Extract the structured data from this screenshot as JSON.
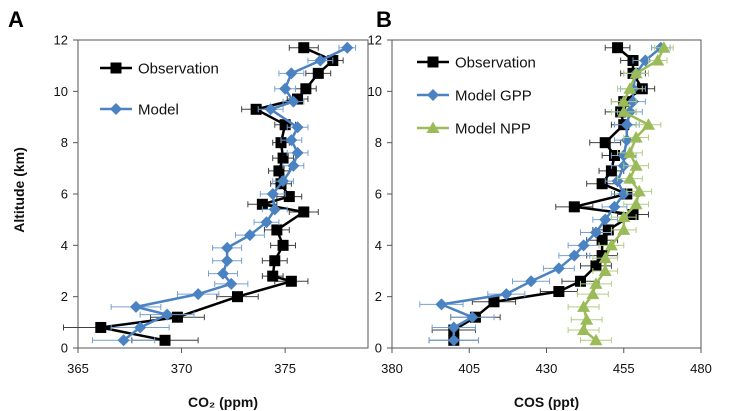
{
  "y_axis_title": "Altitude (km)",
  "chart_data": [
    {
      "type": "line",
      "panel_label": "A",
      "xlabel": "CO₂ (ppm)",
      "ylabel": "Altitude (km)",
      "xlim": [
        365,
        379
      ],
      "ylim": [
        0,
        12
      ],
      "xticks": [
        365,
        370,
        375
      ],
      "yticks": [
        0,
        2,
        4,
        6,
        8,
        10,
        12
      ],
      "legend_position": "top-left",
      "series": [
        {
          "name": "Observation",
          "color": "#000000",
          "marker": "square",
          "points": [
            {
              "y": 11.7,
              "x": 375.9,
              "xerr": 0.7
            },
            {
              "y": 11.2,
              "x": 377.3,
              "xerr": 0.5
            },
            {
              "y": 10.7,
              "x": 376.6,
              "xerr": 0.6
            },
            {
              "y": 10.1,
              "x": 376.0,
              "xerr": 0.5
            },
            {
              "y": 9.7,
              "x": 375.6,
              "xerr": 0.5
            },
            {
              "y": 9.3,
              "x": 373.6,
              "xerr": 0.7
            },
            {
              "y": 8.7,
              "x": 375.0,
              "xerr": 0.5
            },
            {
              "y": 8.0,
              "x": 374.8,
              "xerr": 0.4
            },
            {
              "y": 7.4,
              "x": 374.9,
              "xerr": 0.5
            },
            {
              "y": 6.9,
              "x": 374.7,
              "xerr": 0.5
            },
            {
              "y": 6.4,
              "x": 374.8,
              "xerr": 0.5
            },
            {
              "y": 5.9,
              "x": 375.2,
              "xerr": 0.6
            },
            {
              "y": 5.6,
              "x": 373.9,
              "xerr": 0.7
            },
            {
              "y": 5.3,
              "x": 375.9,
              "xerr": 0.7
            },
            {
              "y": 4.6,
              "x": 374.6,
              "xerr": 0.6
            },
            {
              "y": 4.0,
              "x": 374.9,
              "xerr": 0.6
            },
            {
              "y": 3.4,
              "x": 374.5,
              "xerr": 0.6
            },
            {
              "y": 2.8,
              "x": 374.4,
              "xerr": 0.5
            },
            {
              "y": 2.6,
              "x": 375.3,
              "xerr": 0.8
            },
            {
              "y": 2.0,
              "x": 372.7,
              "xerr": 1.0
            },
            {
              "y": 1.2,
              "x": 369.8,
              "xerr": 1.3
            },
            {
              "y": 0.8,
              "x": 366.1,
              "xerr": 1.8
            },
            {
              "y": 0.3,
              "x": 369.2,
              "xerr": 1.6
            }
          ]
        },
        {
          "name": "Model",
          "color": "#4a82c2",
          "marker": "diamond",
          "points": [
            {
              "y": 11.7,
              "x": 378.0,
              "xerr": 0.4
            },
            {
              "y": 11.2,
              "x": 376.7,
              "xerr": 0.6
            },
            {
              "y": 10.7,
              "x": 375.3,
              "xerr": 0.6
            },
            {
              "y": 10.1,
              "x": 375.0,
              "xerr": 0.5
            },
            {
              "y": 9.6,
              "x": 375.4,
              "xerr": 0.5
            },
            {
              "y": 9.3,
              "x": 374.3,
              "xerr": 0.6
            },
            {
              "y": 8.6,
              "x": 375.6,
              "xerr": 0.5
            },
            {
              "y": 8.1,
              "x": 375.3,
              "xerr": 0.5
            },
            {
              "y": 7.6,
              "x": 375.6,
              "xerr": 0.5
            },
            {
              "y": 7.1,
              "x": 375.4,
              "xerr": 0.5
            },
            {
              "y": 6.5,
              "x": 374.9,
              "xerr": 0.5
            },
            {
              "y": 6.0,
              "x": 374.4,
              "xerr": 0.6
            },
            {
              "y": 5.4,
              "x": 374.5,
              "xerr": 0.6
            },
            {
              "y": 4.9,
              "x": 374.1,
              "xerr": 0.6
            },
            {
              "y": 4.4,
              "x": 373.3,
              "xerr": 0.7
            },
            {
              "y": 3.9,
              "x": 372.2,
              "xerr": 0.7
            },
            {
              "y": 3.4,
              "x": 372.2,
              "xerr": 0.7
            },
            {
              "y": 2.9,
              "x": 372.0,
              "xerr": 0.7
            },
            {
              "y": 2.5,
              "x": 372.4,
              "xerr": 0.8
            },
            {
              "y": 2.1,
              "x": 370.8,
              "xerr": 1.0
            },
            {
              "y": 1.6,
              "x": 367.8,
              "xerr": 1.2
            },
            {
              "y": 1.3,
              "x": 369.3,
              "xerr": 1.3
            },
            {
              "y": 0.8,
              "x": 368.0,
              "xerr": 1.4
            },
            {
              "y": 0.3,
              "x": 367.2,
              "xerr": 1.5
            }
          ]
        }
      ]
    },
    {
      "type": "line",
      "panel_label": "B",
      "xlabel": "COS (ppt)",
      "ylabel": "Altitude (km)",
      "xlim": [
        380,
        480
      ],
      "ylim": [
        0,
        12
      ],
      "xticks": [
        380,
        405,
        430,
        455,
        480
      ],
      "yticks": [
        0,
        2,
        4,
        6,
        8,
        10,
        12
      ],
      "legend_position": "top-left",
      "series": [
        {
          "name": "Observation",
          "color": "#000000",
          "marker": "square",
          "points": [
            {
              "y": 11.7,
              "x": 453,
              "xerr": 4
            },
            {
              "y": 11.2,
              "x": 458,
              "xerr": 4
            },
            {
              "y": 10.7,
              "x": 458,
              "xerr": 4
            },
            {
              "y": 10.1,
              "x": 461,
              "xerr": 4
            },
            {
              "y": 9.6,
              "x": 455,
              "xerr": 4
            },
            {
              "y": 9.2,
              "x": 454,
              "xerr": 5
            },
            {
              "y": 8.7,
              "x": 455,
              "xerr": 4
            },
            {
              "y": 8.0,
              "x": 449,
              "xerr": 5
            },
            {
              "y": 7.5,
              "x": 452,
              "xerr": 4
            },
            {
              "y": 6.9,
              "x": 451,
              "xerr": 4
            },
            {
              "y": 6.4,
              "x": 448,
              "xerr": 5
            },
            {
              "y": 6.0,
              "x": 456,
              "xerr": 4
            },
            {
              "y": 5.5,
              "x": 439,
              "xerr": 6
            },
            {
              "y": 5.2,
              "x": 458,
              "xerr": 5
            },
            {
              "y": 4.6,
              "x": 450,
              "xerr": 5
            },
            {
              "y": 4.2,
              "x": 448,
              "xerr": 5
            },
            {
              "y": 3.6,
              "x": 448,
              "xerr": 5
            },
            {
              "y": 3.2,
              "x": 446,
              "xerr": 5
            },
            {
              "y": 2.6,
              "x": 441,
              "xerr": 6
            },
            {
              "y": 2.2,
              "x": 434,
              "xerr": 6
            },
            {
              "y": 1.8,
              "x": 413,
              "xerr": 7
            },
            {
              "y": 1.2,
              "x": 407,
              "xerr": 8
            },
            {
              "y": 0.7,
              "x": 400,
              "xerr": 7
            },
            {
              "y": 0.3,
              "x": 400,
              "xerr": 8
            }
          ]
        },
        {
          "name": "Model GPP",
          "color": "#4a82c2",
          "marker": "diamond",
          "points": [
            {
              "y": 11.7,
              "x": 467,
              "xerr": 3
            },
            {
              "y": 11.2,
              "x": 462,
              "xerr": 4
            },
            {
              "y": 10.7,
              "x": 459,
              "xerr": 4
            },
            {
              "y": 10.1,
              "x": 458,
              "xerr": 4
            },
            {
              "y": 9.6,
              "x": 458,
              "xerr": 4
            },
            {
              "y": 9.2,
              "x": 457,
              "xerr": 4
            },
            {
              "y": 8.7,
              "x": 456,
              "xerr": 4
            },
            {
              "y": 8.1,
              "x": 456,
              "xerr": 4
            },
            {
              "y": 7.5,
              "x": 455,
              "xerr": 4
            },
            {
              "y": 7.1,
              "x": 455,
              "xerr": 4
            },
            {
              "y": 6.5,
              "x": 453,
              "xerr": 4
            },
            {
              "y": 6.0,
              "x": 455,
              "xerr": 4
            },
            {
              "y": 5.5,
              "x": 452,
              "xerr": 4
            },
            {
              "y": 5.0,
              "x": 449,
              "xerr": 4
            },
            {
              "y": 4.5,
              "x": 446,
              "xerr": 5
            },
            {
              "y": 4.0,
              "x": 442,
              "xerr": 5
            },
            {
              "y": 3.6,
              "x": 439,
              "xerr": 5
            },
            {
              "y": 3.1,
              "x": 434,
              "xerr": 5
            },
            {
              "y": 2.6,
              "x": 425,
              "xerr": 6
            },
            {
              "y": 2.1,
              "x": 417,
              "xerr": 6
            },
            {
              "y": 1.7,
              "x": 396,
              "xerr": 7
            },
            {
              "y": 1.2,
              "x": 406,
              "xerr": 7
            },
            {
              "y": 0.8,
              "x": 400,
              "xerr": 7
            },
            {
              "y": 0.3,
              "x": 400,
              "xerr": 8
            }
          ]
        },
        {
          "name": "Model NPP",
          "color": "#9bbb59",
          "marker": "triangle",
          "points": [
            {
              "y": 11.7,
              "x": 468,
              "xerr": 3
            },
            {
              "y": 11.2,
              "x": 466,
              "xerr": 3
            },
            {
              "y": 10.7,
              "x": 459,
              "xerr": 4
            },
            {
              "y": 10.1,
              "x": 457,
              "xerr": 4
            },
            {
              "y": 9.6,
              "x": 455,
              "xerr": 4
            },
            {
              "y": 9.2,
              "x": 455,
              "xerr": 4
            },
            {
              "y": 8.7,
              "x": 463,
              "xerr": 4
            },
            {
              "y": 8.2,
              "x": 459,
              "xerr": 4
            },
            {
              "y": 7.6,
              "x": 457,
              "xerr": 4
            },
            {
              "y": 7.1,
              "x": 459,
              "xerr": 4
            },
            {
              "y": 6.6,
              "x": 457,
              "xerr": 4
            },
            {
              "y": 6.1,
              "x": 460,
              "xerr": 4
            },
            {
              "y": 5.6,
              "x": 459,
              "xerr": 4
            },
            {
              "y": 5.1,
              "x": 455,
              "xerr": 4
            },
            {
              "y": 4.6,
              "x": 455,
              "xerr": 4
            },
            {
              "y": 4.0,
              "x": 451,
              "xerr": 4
            },
            {
              "y": 3.5,
              "x": 449,
              "xerr": 4
            },
            {
              "y": 3.0,
              "x": 449,
              "xerr": 4
            },
            {
              "y": 2.5,
              "x": 446,
              "xerr": 5
            },
            {
              "y": 2.1,
              "x": 445,
              "xerr": 5
            },
            {
              "y": 1.6,
              "x": 442,
              "xerr": 5
            },
            {
              "y": 1.1,
              "x": 443,
              "xerr": 5
            },
            {
              "y": 0.7,
              "x": 442,
              "xerr": 5
            },
            {
              "y": 0.3,
              "x": 446,
              "xerr": 5
            }
          ]
        }
      ]
    }
  ]
}
